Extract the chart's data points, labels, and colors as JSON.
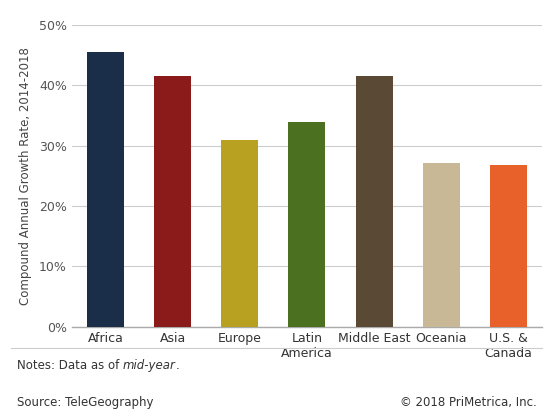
{
  "categories": [
    "Africa",
    "Asia",
    "Europe",
    "Latin\nAmerica",
    "Middle East",
    "Oceania",
    "U.S. &\nCanada"
  ],
  "values": [
    45.5,
    41.5,
    31.0,
    34.0,
    41.5,
    27.2,
    26.8
  ],
  "bar_colors": [
    "#1a2e4a",
    "#8b1a1a",
    "#b8a020",
    "#4a7020",
    "#5a4a35",
    "#c8b896",
    "#e8612a"
  ],
  "ylabel": "Compound Annual Growth Rate, 2014-2018",
  "ylim": [
    0,
    50
  ],
  "yticks": [
    0,
    10,
    20,
    30,
    40,
    50
  ],
  "ytick_labels": [
    "0%",
    "10%",
    "20%",
    "30%",
    "40%",
    "50%"
  ],
  "note_normal1": "Notes: Data as of ",
  "note_italic": "mid-year",
  "note_normal2": ".",
  "source_left": "Source: TeleGeography",
  "source_right": "© 2018 PriMetrica, Inc.",
  "background_color": "#ffffff",
  "grid_color": "#cccccc",
  "bar_width": 0.55
}
